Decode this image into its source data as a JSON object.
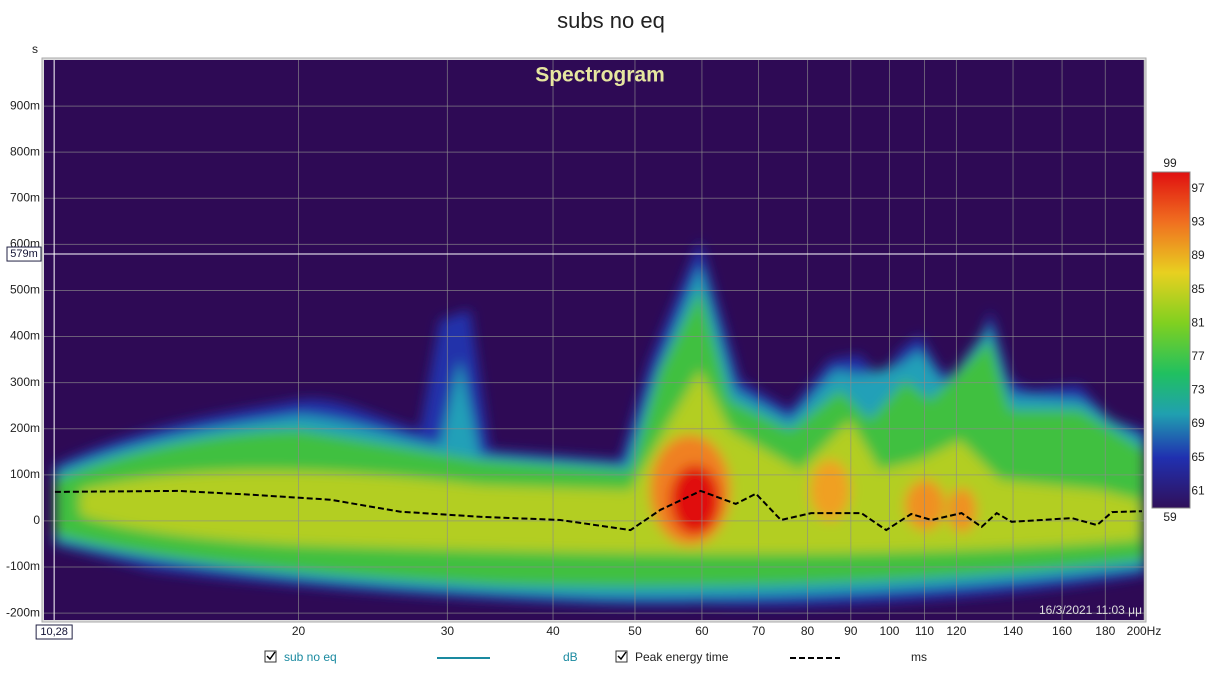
{
  "chart_data": {
    "type": "spectrogram",
    "title": "subs no eq",
    "subtitle": "Spectrogram",
    "y_label": "s",
    "timestamp": "16/3/2021 11:03 μμ",
    "x_scale": "log",
    "grid": true,
    "xlim": [
      10,
      200
    ],
    "xticks": [
      20,
      30,
      40,
      50,
      60,
      70,
      80,
      90,
      100,
      110,
      120,
      140,
      160,
      180,
      {
        "value": 200,
        "label": "200Hz"
      }
    ],
    "ylim": [
      -0.215,
      1.0
    ],
    "yticks": [
      {
        "value": -0.2,
        "label": "-200m"
      },
      {
        "value": -0.1,
        "label": "-100m"
      },
      0,
      {
        "value": 0.1,
        "label": "100m"
      },
      {
        "value": 0.2,
        "label": "200m"
      },
      {
        "value": 0.3,
        "label": "300m"
      },
      {
        "value": 0.4,
        "label": "400m"
      },
      {
        "value": 0.5,
        "label": "500m"
      },
      {
        "value": 0.6,
        "label": "600m"
      },
      {
        "value": 0.7,
        "label": "700m"
      },
      {
        "value": 0.8,
        "label": "800m"
      },
      {
        "value": 0.9,
        "label": "900m"
      }
    ],
    "cursor": {
      "x": {
        "value": 10.28,
        "label": "10,28"
      },
      "y": {
        "value": 0.579,
        "label": "579m"
      }
    },
    "colorbar": {
      "lim": [
        59,
        99
      ],
      "ticks": [
        59,
        61,
        65,
        69,
        73,
        77,
        81,
        85,
        89,
        93,
        97,
        99
      ]
    },
    "legend": {
      "measurement": "sub no eq",
      "measurement_unit": "dB",
      "overlay_unit": "ms"
    },
    "series": [
      {
        "name": "Peak energy time",
        "color": "#000000",
        "x": [
          10.3,
          14.4,
          17.5,
          21.8,
          26.4,
          32.8,
          40.8,
          49.4,
          53.6,
          59.8,
          65.8,
          69.5,
          74.4,
          80.8,
          92.6,
          99.1,
          106.1,
          112.1,
          121.7,
          128.5,
          133.9,
          139.5,
          151.4,
          164.3,
          176.0,
          183.3,
          198.9
        ],
        "values": [
          0.063,
          0.065,
          0.057,
          0.046,
          0.02,
          0.009,
          0.002,
          -0.02,
          0.024,
          0.065,
          0.037,
          0.059,
          0.002,
          0.017,
          0.017,
          -0.02,
          0.015,
          0.002,
          0.017,
          -0.013,
          0.017,
          -0.002,
          0.002,
          0.006,
          -0.009,
          0.019,
          0.021
        ]
      }
    ]
  }
}
